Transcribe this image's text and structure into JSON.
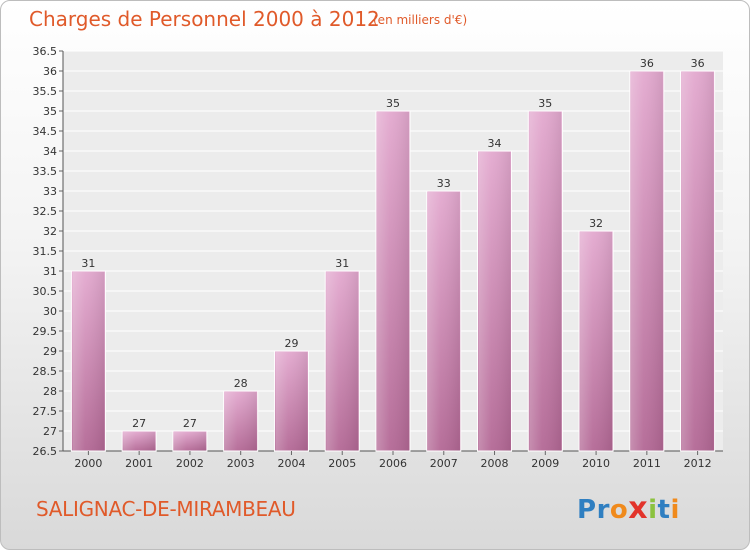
{
  "chart_data": {
    "type": "bar",
    "title": "Charges de Personnel 2000 à 2012",
    "subtitle": "(en milliers d'€)",
    "categories": [
      "2000",
      "2001",
      "2002",
      "2003",
      "2004",
      "2005",
      "2006",
      "2007",
      "2008",
      "2009",
      "2010",
      "2011",
      "2012"
    ],
    "values": [
      31,
      27,
      27,
      28,
      29,
      31,
      35,
      33,
      34,
      35,
      32,
      36,
      36
    ],
    "ylim": [
      26.5,
      36.5
    ],
    "yticks": [
      "26.5",
      "27",
      "27.5",
      "28",
      "28.5",
      "29",
      "29.5",
      "30",
      "30.5",
      "31",
      "31.5",
      "32",
      "32.5",
      "33",
      "33.5",
      "34",
      "34.5",
      "35",
      "35.5",
      "36",
      "36.5"
    ],
    "grid": true,
    "bar_color": "#c87aa8",
    "xlabel": "",
    "ylabel": ""
  },
  "footer": {
    "place": "SALIGNAC-DE-MIRAMBEAU",
    "logo_letters": [
      "P",
      "r",
      "o",
      "x",
      "i",
      "t",
      "i"
    ],
    "logo_colors": [
      "#2f7fc1",
      "#2f7fc1",
      "#f08a1c",
      "#e2342b",
      "#8cc23f",
      "#2f7fc1",
      "#f08a1c"
    ]
  }
}
